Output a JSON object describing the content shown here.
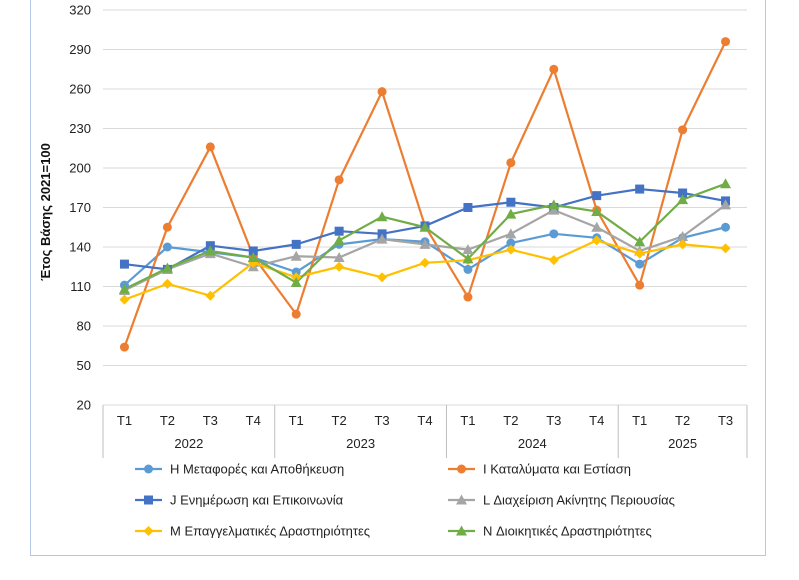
{
  "chart_data": {
    "type": "line",
    "title": "",
    "ylabel": "Έτος Βάσης 2021=100",
    "xlabel": "",
    "ylim": [
      20,
      320
    ],
    "yticks": [
      20,
      50,
      80,
      110,
      140,
      170,
      200,
      230,
      260,
      290,
      320
    ],
    "grid": true,
    "legend_position": "bottom",
    "categories": [
      "T1",
      "T2",
      "T3",
      "T4",
      "T1",
      "T2",
      "T3",
      "T4",
      "T1",
      "T2",
      "T3",
      "T4",
      "T1",
      "T2",
      "T3"
    ],
    "groups": [
      {
        "label": "2022",
        "count": 4
      },
      {
        "label": "2023",
        "count": 4
      },
      {
        "label": "2024",
        "count": 4
      },
      {
        "label": "2025",
        "count": 3
      }
    ],
    "series": [
      {
        "name": "H Μεταφορές και Αποθήκευση",
        "color": "#5b9bd5",
        "marker": "circle",
        "values": [
          111,
          140,
          136,
          132,
          121,
          142,
          146,
          144,
          123,
          143,
          150,
          147,
          127,
          147,
          155
        ]
      },
      {
        "name": "I Καταλύματα και Εστίαση",
        "color": "#ed7d31",
        "marker": "circle",
        "values": [
          64,
          155,
          216,
          133,
          89,
          191,
          258,
          156,
          102,
          204,
          275,
          168,
          111,
          229,
          296
        ]
      },
      {
        "name": "J Ενημέρωση και Επικοινωνία",
        "color": "#4472c4",
        "marker": "square",
        "values": [
          127,
          123,
          141,
          137,
          142,
          152,
          150,
          156,
          170,
          174,
          170,
          179,
          184,
          181,
          175
        ]
      },
      {
        "name": "L Διαχείριση Ακίνητης Περιουσίας",
        "color": "#a5a5a5",
        "marker": "triangle",
        "values": [
          107,
          123,
          135,
          125,
          133,
          132,
          146,
          142,
          138,
          150,
          168,
          155,
          137,
          148,
          172
        ]
      },
      {
        "name": "M Επαγγελματικές Δραστηριότητες",
        "color": "#ffc000",
        "marker": "diamond",
        "values": [
          100,
          112,
          103,
          128,
          117,
          125,
          117,
          128,
          130,
          138,
          130,
          145,
          135,
          142,
          139
        ]
      },
      {
        "name": "N Διοικητικές Δραστηριότητες",
        "color": "#70ad47",
        "marker": "triangle",
        "values": [
          108,
          124,
          137,
          132,
          113,
          145,
          163,
          155,
          131,
          165,
          172,
          167,
          144,
          176,
          188
        ]
      }
    ]
  }
}
